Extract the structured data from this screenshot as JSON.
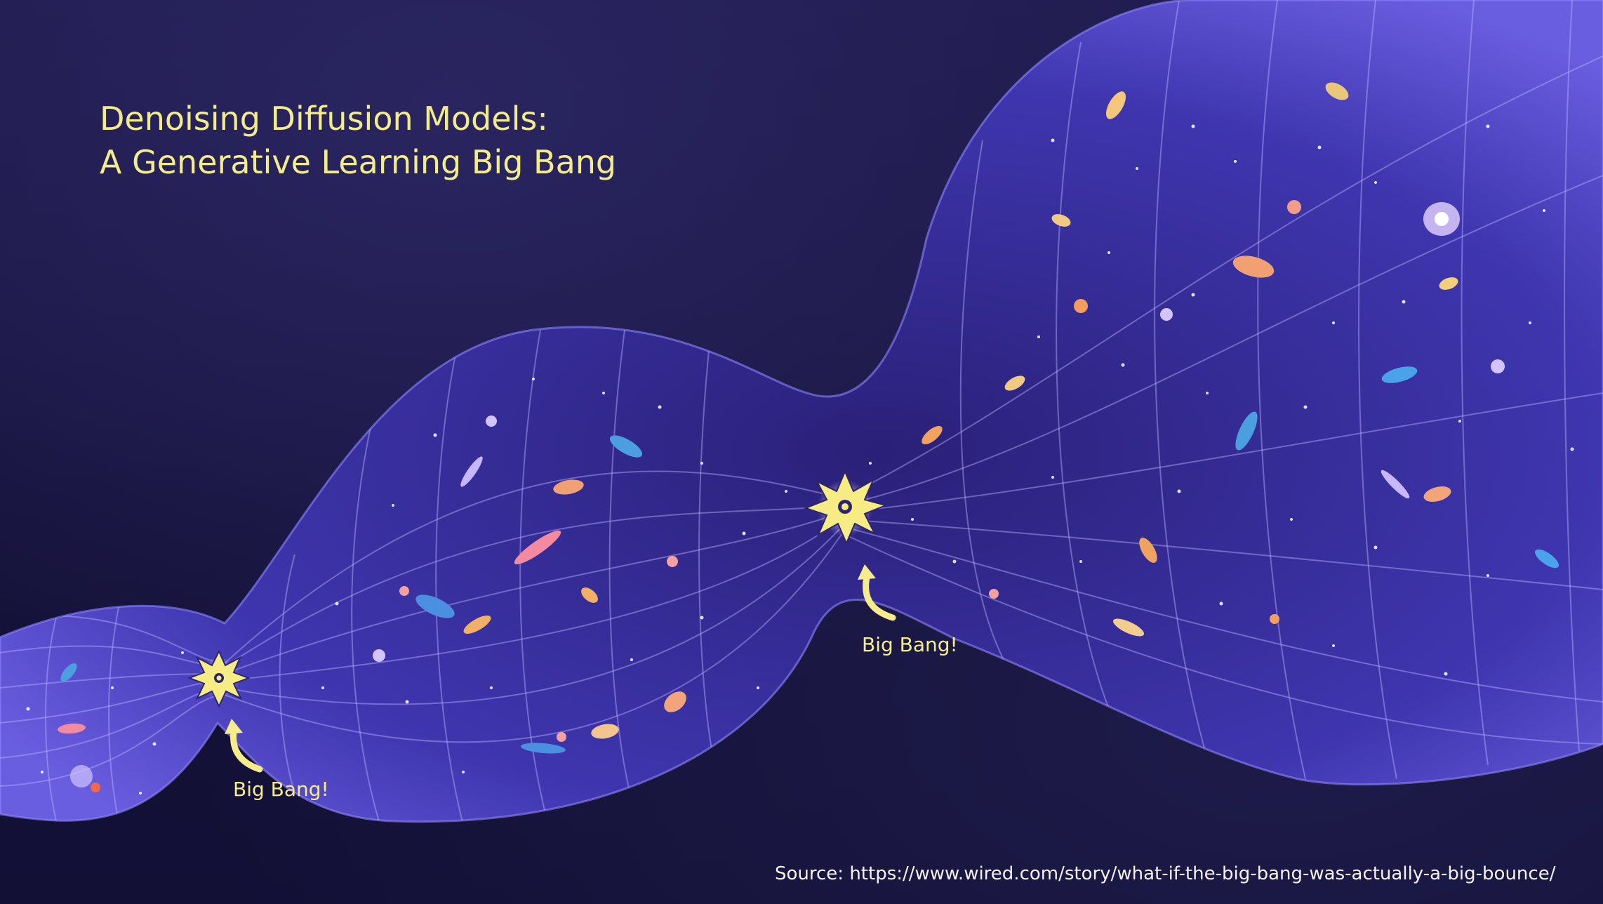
{
  "slide": {
    "title_line1": "Denoising Diffusion Models:",
    "title_line2": "A Generative Learning Big Bang",
    "bang_label_1": "Big Bang!",
    "bang_label_2": "Big Bang!",
    "source": "Source: https://www.wired.com/story/what-if-the-big-bang-was-actually-a-big-bounce/"
  },
  "colors": {
    "background": "#15123a",
    "universe_fill": "#4a3fc4",
    "title_text": "#f3ec8a",
    "label_text": "#f5ec8c",
    "source_text": "#f4f2ee"
  }
}
